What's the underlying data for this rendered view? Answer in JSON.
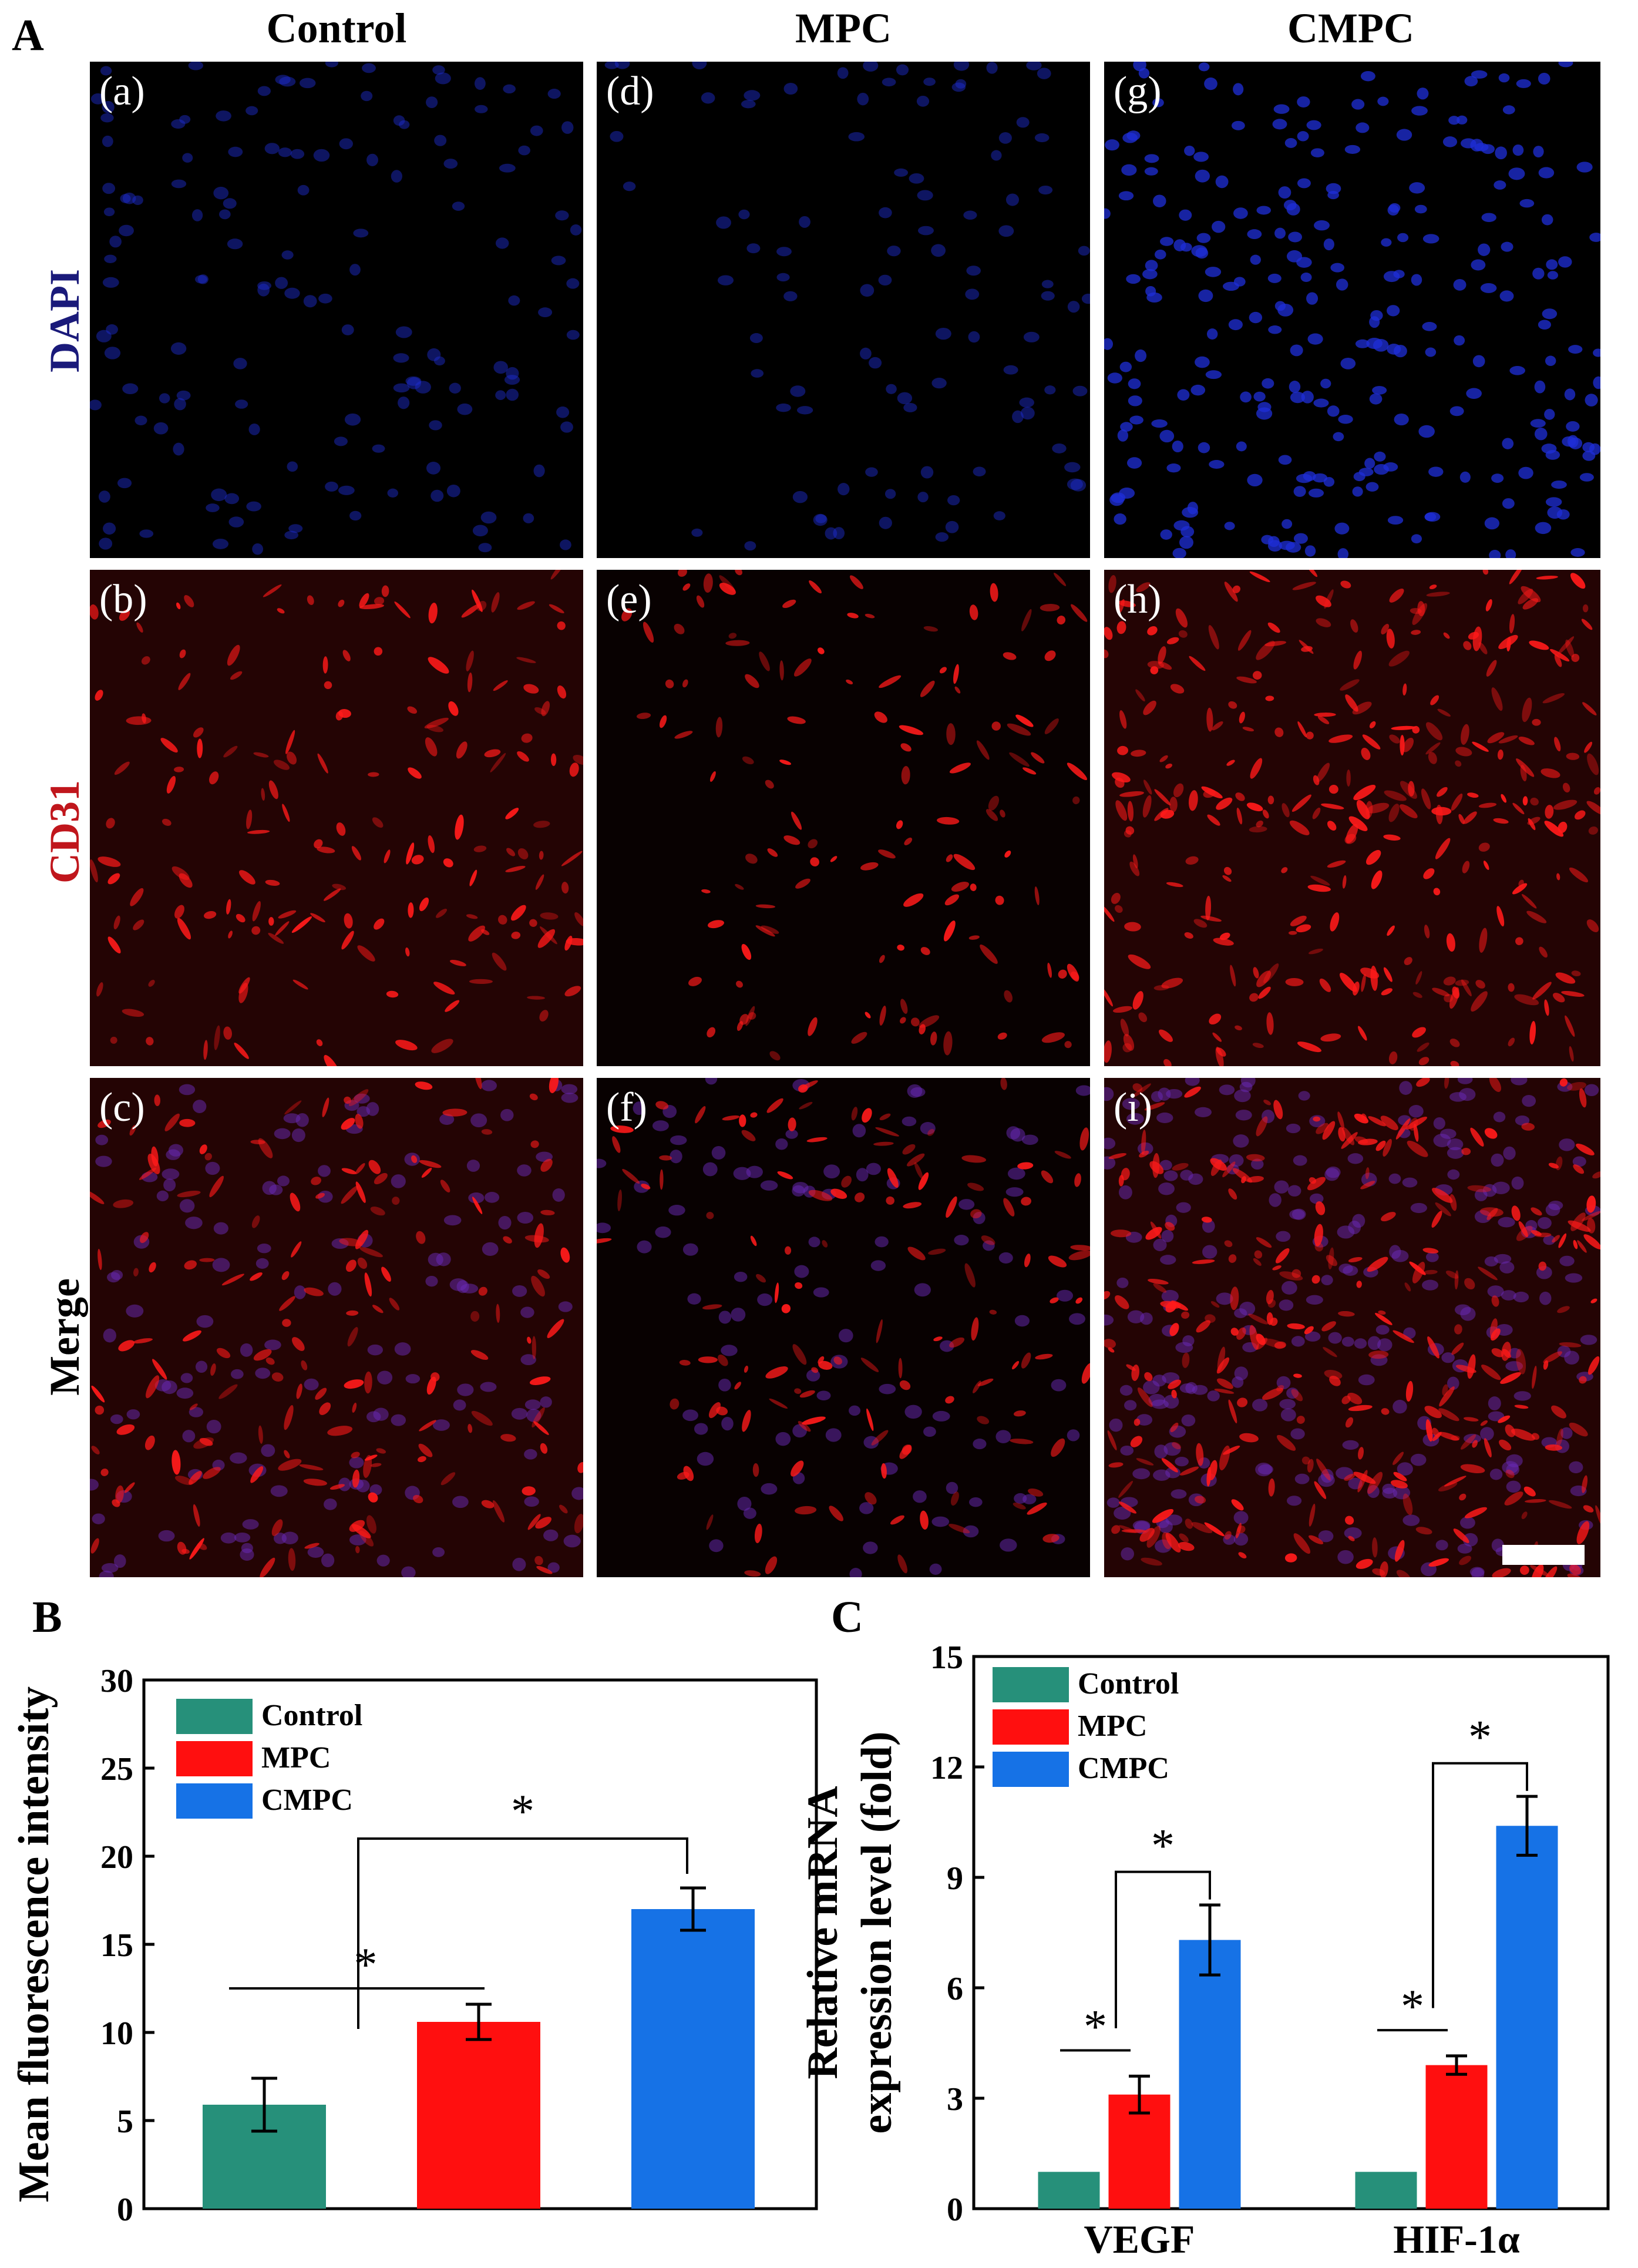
{
  "figure": {
    "panel_letters": {
      "A": "A",
      "B": "B",
      "C": "C"
    },
    "column_headers": [
      "Control",
      "MPC",
      "CMPC"
    ],
    "row_labels": [
      {
        "text": "DAPI",
        "color": "#1a1a7a"
      },
      {
        "text": "CD31",
        "color": "#c0161c"
      },
      {
        "text": "Merge",
        "color": "#000000"
      }
    ],
    "image_tiles": [
      {
        "label": "(a)",
        "stain": "dapi",
        "group": "Control"
      },
      {
        "label": "(b)",
        "stain": "cd31",
        "group": "Control"
      },
      {
        "label": "(c)",
        "stain": "merge",
        "group": "Control"
      },
      {
        "label": "(d)",
        "stain": "dapi",
        "group": "MPC"
      },
      {
        "label": "(e)",
        "stain": "cd31",
        "group": "MPC"
      },
      {
        "label": "(f)",
        "stain": "merge",
        "group": "MPC"
      },
      {
        "label": "(g)",
        "stain": "dapi",
        "group": "CMPC"
      },
      {
        "label": "(h)",
        "stain": "cd31",
        "group": "CMPC"
      },
      {
        "label": "(i)",
        "stain": "merge",
        "group": "CMPC"
      }
    ],
    "stain_colors": {
      "dapi": "#1f2fd8",
      "cd31": "#ff1a1a",
      "merge_nuclei": "#6a2ab8"
    }
  },
  "chart_data": [
    {
      "id": "B",
      "type": "bar",
      "title": "",
      "xlabel": "",
      "ylabel": "Mean fluorescence intensity",
      "ylim": [
        0,
        30
      ],
      "yticks": [
        0,
        5,
        10,
        15,
        20,
        25,
        30
      ],
      "categories": [
        "Control",
        "MPC",
        "CMPC"
      ],
      "values": [
        5.9,
        10.6,
        17.0
      ],
      "errors": [
        1.5,
        1.0,
        1.2
      ],
      "colors": [
        "#26907a",
        "#ff0f0f",
        "#1672e6"
      ],
      "legend": {
        "placement": "top-left",
        "entries": [
          "Control",
          "MPC",
          "CMPC"
        ]
      },
      "significance": [
        {
          "from": 0,
          "to": 1,
          "label": "*"
        },
        {
          "from": 1,
          "to": 2,
          "label": "*"
        }
      ]
    },
    {
      "id": "C",
      "type": "bar",
      "title": "",
      "xlabel": "",
      "ylabel_lines": [
        "Relative mRNA",
        "expression level (fold)"
      ],
      "ylim": [
        0,
        15
      ],
      "yticks": [
        0,
        3,
        6,
        9,
        12,
        15
      ],
      "categories": [
        "VEGF",
        "HIF-1α"
      ],
      "series": [
        {
          "name": "Control",
          "color": "#26907a",
          "values": [
            1.0,
            1.0
          ],
          "errors": [
            0,
            0
          ]
        },
        {
          "name": "MPC",
          "color": "#ff0f0f",
          "values": [
            3.1,
            3.9
          ],
          "errors": [
            0.5,
            0.25
          ]
        },
        {
          "name": "CMPC",
          "color": "#1672e6",
          "values": [
            7.3,
            10.4
          ],
          "errors": [
            0.95,
            0.8
          ]
        }
      ],
      "legend": {
        "placement": "top-left",
        "entries": [
          "Control",
          "MPC",
          "CMPC"
        ]
      },
      "significance": [
        {
          "category": 0,
          "from": 0,
          "to": 1,
          "label": "*"
        },
        {
          "category": 0,
          "from": 1,
          "to": 2,
          "label": "*"
        },
        {
          "category": 1,
          "from": 0,
          "to": 1,
          "label": "*"
        },
        {
          "category": 1,
          "from": 1,
          "to": 2,
          "label": "*"
        }
      ]
    }
  ]
}
